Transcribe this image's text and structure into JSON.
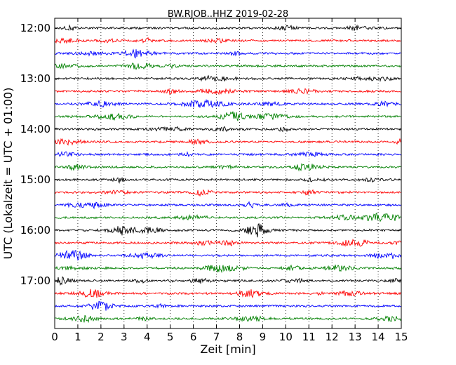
{
  "chart_data": {
    "type": "line",
    "title": "BW.RJOB..HHZ 2019-02-28",
    "xlabel": "Zeit  [min]",
    "ylabel": "UTC (Lokalzeit = UTC + 01:00)",
    "xlim": [
      0,
      15
    ],
    "x_ticks": [
      "0",
      "1",
      "2",
      "3",
      "4",
      "5",
      "6",
      "7",
      "8",
      "9",
      "10",
      "11",
      "12",
      "13",
      "14",
      "15"
    ],
    "y_ticks": [
      "12:00",
      "13:00",
      "14:00",
      "15:00",
      "16:00",
      "17:00"
    ],
    "trace_start": "12:00",
    "trace_end": "17:45",
    "trace_interval_min": 15,
    "grid": "vertical-dotted",
    "trace_colors": [
      "#000000",
      "#ff0000",
      "#0000ff",
      "#008000"
    ]
  }
}
